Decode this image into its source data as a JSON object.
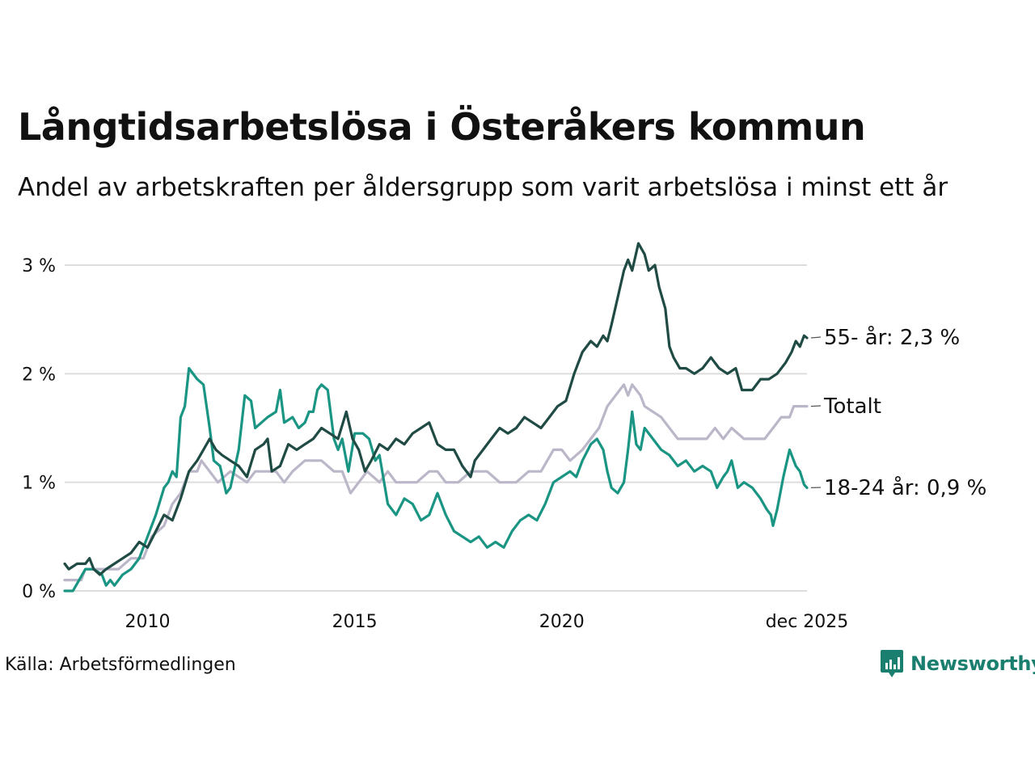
{
  "title": "Långtidsarbetslösa i Österåkers kommun",
  "subtitle": "Andel av arbetskraften per åldersgrupp som varit arbetslösa i minst ett år",
  "source": "Källa: Arbetsförmedlingen",
  "brand": "Newsworthy",
  "colors": {
    "s55": "#1f4b44",
    "total": "#bbb6c8",
    "s1824": "#1a9583",
    "grid": "#dddddd",
    "brand": "#1a7f6e"
  },
  "chart_data": {
    "type": "line",
    "title": "Långtidsarbetslösa i Österåkers kommun",
    "xlabel": "",
    "ylabel": "",
    "xlim": [
      2008.0,
      2025.92
    ],
    "ylim": [
      0,
      3.3
    ],
    "y_ticks": [
      {
        "value": 0,
        "label": "0 %"
      },
      {
        "value": 1,
        "label": "1 %"
      },
      {
        "value": 2,
        "label": "2 %"
      },
      {
        "value": 3,
        "label": "3 %"
      }
    ],
    "x_ticks": [
      {
        "value": 2010.0,
        "label": "2010"
      },
      {
        "value": 2015.0,
        "label": "2015"
      },
      {
        "value": 2020.0,
        "label": "2020"
      },
      {
        "value": 2025.92,
        "label": "dec 2025"
      }
    ],
    "series": [
      {
        "key": "total",
        "name": "Totalt",
        "end_label": "Totalt",
        "color": "#bbb6c8",
        "points": [
          [
            2008.0,
            0.1
          ],
          [
            2008.4,
            0.1
          ],
          [
            2008.5,
            0.2
          ],
          [
            2009.2,
            0.2
          ],
          [
            2009.3,
            0.2
          ],
          [
            2009.6,
            0.3
          ],
          [
            2009.9,
            0.3
          ],
          [
            2010.1,
            0.5
          ],
          [
            2010.4,
            0.6
          ],
          [
            2010.6,
            0.8
          ],
          [
            2010.8,
            0.9
          ],
          [
            2011.0,
            1.1
          ],
          [
            2011.2,
            1.1
          ],
          [
            2011.3,
            1.2
          ],
          [
            2011.5,
            1.1
          ],
          [
            2011.7,
            1.0
          ],
          [
            2012.0,
            1.1
          ],
          [
            2012.4,
            1.0
          ],
          [
            2012.6,
            1.1
          ],
          [
            2013.1,
            1.1
          ],
          [
            2013.3,
            1.0
          ],
          [
            2013.5,
            1.1
          ],
          [
            2013.8,
            1.2
          ],
          [
            2014.2,
            1.2
          ],
          [
            2014.5,
            1.1
          ],
          [
            2014.7,
            1.1
          ],
          [
            2014.9,
            0.9
          ],
          [
            2015.1,
            1.0
          ],
          [
            2015.3,
            1.1
          ],
          [
            2015.6,
            1.0
          ],
          [
            2015.8,
            1.1
          ],
          [
            2016.0,
            1.0
          ],
          [
            2016.3,
            1.0
          ],
          [
            2016.5,
            1.0
          ],
          [
            2016.8,
            1.1
          ],
          [
            2017.0,
            1.1
          ],
          [
            2017.2,
            1.0
          ],
          [
            2017.5,
            1.0
          ],
          [
            2017.8,
            1.1
          ],
          [
            2018.2,
            1.1
          ],
          [
            2018.5,
            1.0
          ],
          [
            2018.9,
            1.0
          ],
          [
            2019.2,
            1.1
          ],
          [
            2019.5,
            1.1
          ],
          [
            2019.8,
            1.3
          ],
          [
            2020.0,
            1.3
          ],
          [
            2020.2,
            1.2
          ],
          [
            2020.5,
            1.3
          ],
          [
            2020.7,
            1.4
          ],
          [
            2020.9,
            1.5
          ],
          [
            2021.1,
            1.7
          ],
          [
            2021.3,
            1.8
          ],
          [
            2021.5,
            1.9
          ],
          [
            2021.6,
            1.8
          ],
          [
            2021.7,
            1.9
          ],
          [
            2021.9,
            1.8
          ],
          [
            2022.0,
            1.7
          ],
          [
            2022.4,
            1.6
          ],
          [
            2022.6,
            1.5
          ],
          [
            2022.8,
            1.4
          ],
          [
            2023.3,
            1.4
          ],
          [
            2023.5,
            1.4
          ],
          [
            2023.7,
            1.5
          ],
          [
            2023.9,
            1.4
          ],
          [
            2024.1,
            1.5
          ],
          [
            2024.4,
            1.4
          ],
          [
            2024.9,
            1.4
          ],
          [
            2025.1,
            1.5
          ],
          [
            2025.3,
            1.6
          ],
          [
            2025.5,
            1.6
          ],
          [
            2025.6,
            1.7
          ],
          [
            2025.92,
            1.7
          ]
        ]
      },
      {
        "key": "s1824",
        "name": "18-24 år",
        "end_label": "18-24 år: 0,9 %",
        "color": "#1a9583",
        "points": [
          [
            2008.0,
            0.0
          ],
          [
            2008.2,
            0.0
          ],
          [
            2008.5,
            0.2
          ],
          [
            2008.7,
            0.2
          ],
          [
            2008.9,
            0.15
          ],
          [
            2009.0,
            0.05
          ],
          [
            2009.1,
            0.1
          ],
          [
            2009.2,
            0.05
          ],
          [
            2009.4,
            0.15
          ],
          [
            2009.6,
            0.2
          ],
          [
            2009.8,
            0.3
          ],
          [
            2010.0,
            0.5
          ],
          [
            2010.2,
            0.7
          ],
          [
            2010.4,
            0.95
          ],
          [
            2010.5,
            1.0
          ],
          [
            2010.6,
            1.1
          ],
          [
            2010.7,
            1.05
          ],
          [
            2010.8,
            1.6
          ],
          [
            2010.9,
            1.7
          ],
          [
            2011.0,
            2.05
          ],
          [
            2011.2,
            1.95
          ],
          [
            2011.35,
            1.9
          ],
          [
            2011.5,
            1.5
          ],
          [
            2011.6,
            1.2
          ],
          [
            2011.75,
            1.15
          ],
          [
            2011.9,
            0.9
          ],
          [
            2012.0,
            0.95
          ],
          [
            2012.2,
            1.3
          ],
          [
            2012.35,
            1.8
          ],
          [
            2012.5,
            1.75
          ],
          [
            2012.6,
            1.5
          ],
          [
            2012.75,
            1.55
          ],
          [
            2012.9,
            1.6
          ],
          [
            2013.1,
            1.65
          ],
          [
            2013.2,
            1.85
          ],
          [
            2013.3,
            1.55
          ],
          [
            2013.5,
            1.6
          ],
          [
            2013.65,
            1.5
          ],
          [
            2013.8,
            1.55
          ],
          [
            2013.9,
            1.65
          ],
          [
            2014.0,
            1.65
          ],
          [
            2014.1,
            1.85
          ],
          [
            2014.2,
            1.9
          ],
          [
            2014.35,
            1.85
          ],
          [
            2014.5,
            1.4
          ],
          [
            2014.6,
            1.3
          ],
          [
            2014.7,
            1.4
          ],
          [
            2014.85,
            1.1
          ],
          [
            2015.0,
            1.45
          ],
          [
            2015.2,
            1.45
          ],
          [
            2015.35,
            1.4
          ],
          [
            2015.5,
            1.2
          ],
          [
            2015.6,
            1.25
          ],
          [
            2015.8,
            0.8
          ],
          [
            2016.0,
            0.7
          ],
          [
            2016.2,
            0.85
          ],
          [
            2016.4,
            0.8
          ],
          [
            2016.6,
            0.65
          ],
          [
            2016.8,
            0.7
          ],
          [
            2017.0,
            0.9
          ],
          [
            2017.2,
            0.7
          ],
          [
            2017.4,
            0.55
          ],
          [
            2017.6,
            0.5
          ],
          [
            2017.8,
            0.45
          ],
          [
            2018.0,
            0.5
          ],
          [
            2018.2,
            0.4
          ],
          [
            2018.4,
            0.45
          ],
          [
            2018.6,
            0.4
          ],
          [
            2018.8,
            0.55
          ],
          [
            2019.0,
            0.65
          ],
          [
            2019.2,
            0.7
          ],
          [
            2019.4,
            0.65
          ],
          [
            2019.6,
            0.8
          ],
          [
            2019.8,
            1.0
          ],
          [
            2020.0,
            1.05
          ],
          [
            2020.2,
            1.1
          ],
          [
            2020.35,
            1.05
          ],
          [
            2020.5,
            1.2
          ],
          [
            2020.7,
            1.35
          ],
          [
            2020.85,
            1.4
          ],
          [
            2021.0,
            1.3
          ],
          [
            2021.1,
            1.1
          ],
          [
            2021.2,
            0.95
          ],
          [
            2021.35,
            0.9
          ],
          [
            2021.5,
            1.0
          ],
          [
            2021.6,
            1.3
          ],
          [
            2021.7,
            1.65
          ],
          [
            2021.8,
            1.35
          ],
          [
            2021.9,
            1.3
          ],
          [
            2022.0,
            1.5
          ],
          [
            2022.2,
            1.4
          ],
          [
            2022.4,
            1.3
          ],
          [
            2022.6,
            1.25
          ],
          [
            2022.8,
            1.15
          ],
          [
            2023.0,
            1.2
          ],
          [
            2023.2,
            1.1
          ],
          [
            2023.4,
            1.15
          ],
          [
            2023.6,
            1.1
          ],
          [
            2023.75,
            0.95
          ],
          [
            2023.9,
            1.05
          ],
          [
            2024.0,
            1.1
          ],
          [
            2024.1,
            1.2
          ],
          [
            2024.25,
            0.95
          ],
          [
            2024.4,
            1.0
          ],
          [
            2024.6,
            0.95
          ],
          [
            2024.8,
            0.85
          ],
          [
            2024.95,
            0.75
          ],
          [
            2025.05,
            0.7
          ],
          [
            2025.1,
            0.6
          ],
          [
            2025.2,
            0.75
          ],
          [
            2025.35,
            1.05
          ],
          [
            2025.5,
            1.3
          ],
          [
            2025.65,
            1.15
          ],
          [
            2025.75,
            1.1
          ],
          [
            2025.85,
            0.98
          ],
          [
            2025.92,
            0.95
          ]
        ]
      },
      {
        "key": "s55",
        "name": "55- år",
        "end_label": "55- år: 2,3 %",
        "color": "#1f4b44",
        "points": [
          [
            2008.0,
            0.25
          ],
          [
            2008.1,
            0.2
          ],
          [
            2008.3,
            0.25
          ],
          [
            2008.5,
            0.25
          ],
          [
            2008.6,
            0.3
          ],
          [
            2008.7,
            0.2
          ],
          [
            2008.85,
            0.15
          ],
          [
            2009.0,
            0.2
          ],
          [
            2009.2,
            0.25
          ],
          [
            2009.4,
            0.3
          ],
          [
            2009.6,
            0.35
          ],
          [
            2009.8,
            0.45
          ],
          [
            2010.0,
            0.4
          ],
          [
            2010.2,
            0.55
          ],
          [
            2010.4,
            0.7
          ],
          [
            2010.6,
            0.65
          ],
          [
            2010.8,
            0.85
          ],
          [
            2011.0,
            1.1
          ],
          [
            2011.2,
            1.2
          ],
          [
            2011.35,
            1.3
          ],
          [
            2011.5,
            1.4
          ],
          [
            2011.65,
            1.3
          ],
          [
            2011.8,
            1.25
          ],
          [
            2012.0,
            1.2
          ],
          [
            2012.2,
            1.15
          ],
          [
            2012.4,
            1.05
          ],
          [
            2012.6,
            1.3
          ],
          [
            2012.8,
            1.35
          ],
          [
            2012.9,
            1.4
          ],
          [
            2013.0,
            1.1
          ],
          [
            2013.2,
            1.15
          ],
          [
            2013.4,
            1.35
          ],
          [
            2013.6,
            1.3
          ],
          [
            2013.8,
            1.35
          ],
          [
            2014.0,
            1.4
          ],
          [
            2014.2,
            1.5
          ],
          [
            2014.4,
            1.45
          ],
          [
            2014.6,
            1.4
          ],
          [
            2014.8,
            1.65
          ],
          [
            2014.95,
            1.4
          ],
          [
            2015.1,
            1.3
          ],
          [
            2015.25,
            1.1
          ],
          [
            2015.4,
            1.2
          ],
          [
            2015.6,
            1.35
          ],
          [
            2015.8,
            1.3
          ],
          [
            2016.0,
            1.4
          ],
          [
            2016.2,
            1.35
          ],
          [
            2016.4,
            1.45
          ],
          [
            2016.6,
            1.5
          ],
          [
            2016.8,
            1.55
          ],
          [
            2017.0,
            1.35
          ],
          [
            2017.2,
            1.3
          ],
          [
            2017.4,
            1.3
          ],
          [
            2017.6,
            1.15
          ],
          [
            2017.8,
            1.05
          ],
          [
            2017.9,
            1.2
          ],
          [
            2018.1,
            1.3
          ],
          [
            2018.3,
            1.4
          ],
          [
            2018.5,
            1.5
          ],
          [
            2018.7,
            1.45
          ],
          [
            2018.9,
            1.5
          ],
          [
            2019.1,
            1.6
          ],
          [
            2019.3,
            1.55
          ],
          [
            2019.5,
            1.5
          ],
          [
            2019.7,
            1.6
          ],
          [
            2019.9,
            1.7
          ],
          [
            2020.1,
            1.75
          ],
          [
            2020.3,
            2.0
          ],
          [
            2020.5,
            2.2
          ],
          [
            2020.7,
            2.3
          ],
          [
            2020.85,
            2.25
          ],
          [
            2021.0,
            2.35
          ],
          [
            2021.1,
            2.3
          ],
          [
            2021.2,
            2.45
          ],
          [
            2021.35,
            2.7
          ],
          [
            2021.5,
            2.95
          ],
          [
            2021.6,
            3.05
          ],
          [
            2021.7,
            2.95
          ],
          [
            2021.85,
            3.2
          ],
          [
            2022.0,
            3.1
          ],
          [
            2022.1,
            2.95
          ],
          [
            2022.25,
            3.0
          ],
          [
            2022.35,
            2.8
          ],
          [
            2022.5,
            2.6
          ],
          [
            2022.6,
            2.25
          ],
          [
            2022.7,
            2.15
          ],
          [
            2022.85,
            2.05
          ],
          [
            2023.0,
            2.05
          ],
          [
            2023.2,
            2.0
          ],
          [
            2023.4,
            2.05
          ],
          [
            2023.6,
            2.15
          ],
          [
            2023.8,
            2.05
          ],
          [
            2024.0,
            2.0
          ],
          [
            2024.2,
            2.05
          ],
          [
            2024.35,
            1.85
          ],
          [
            2024.6,
            1.85
          ],
          [
            2024.8,
            1.95
          ],
          [
            2025.0,
            1.95
          ],
          [
            2025.2,
            2.0
          ],
          [
            2025.4,
            2.1
          ],
          [
            2025.55,
            2.2
          ],
          [
            2025.65,
            2.3
          ],
          [
            2025.75,
            2.25
          ],
          [
            2025.85,
            2.35
          ],
          [
            2025.92,
            2.33
          ]
        ]
      }
    ]
  }
}
